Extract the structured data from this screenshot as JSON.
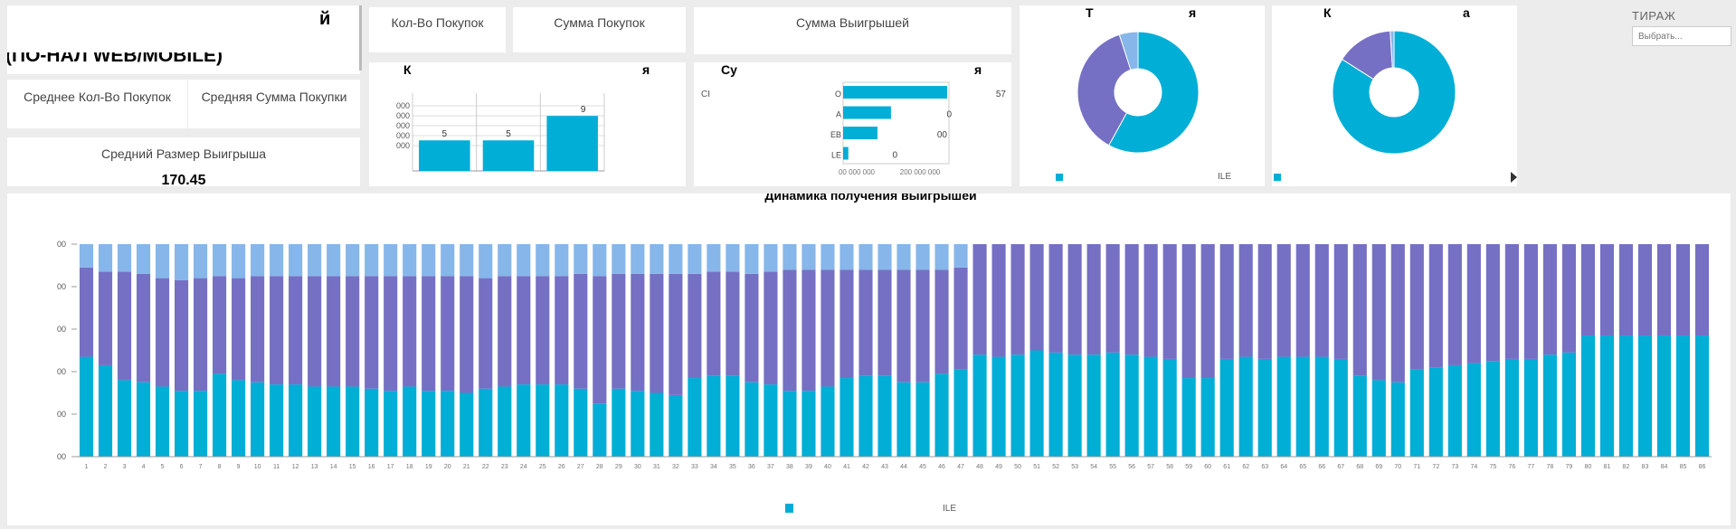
{
  "dashboard": {
    "title_fragment": "й",
    "subtitle_fragment": "(ПО-НАЛ WEB/MOBILE)"
  },
  "kpis": {
    "purchase_count_label": "Кол-Во Покупок",
    "purchase_sum_label": "Сумма Покупок",
    "winnings_sum_label": "Сумма Выигрышей",
    "avg_purchase_count_label": "Среднее Кол-Во Покупок",
    "avg_purchase_sum_label": "Средняя Сумма Покупки",
    "avg_win_size_label": "Средний Размер Выигрыша",
    "avg_win_size_value": "170.45"
  },
  "colors": {
    "web": "#00aed6",
    "mobile": "#7570c4",
    "other": "#86b6ea",
    "grid": "#dddddd"
  },
  "charts": {
    "count_bar": {
      "title_start": "К",
      "title_end": "я",
      "chart_data": {
        "type": "bar",
        "categories": [
          "",
          "",
          ""
        ],
        "values": [
          5,
          5,
          9
        ],
        "data_labels": [
          "5",
          "5",
          "9"
        ],
        "tick_fragments": [
          "000",
          "000",
          "000",
          "000",
          "000"
        ],
        "title": "",
        "xlabel": "",
        "ylabel": ""
      }
    },
    "sum_hbar": {
      "title_start": "Су",
      "title_end": "я",
      "left_label": "СІ",
      "chart_data": {
        "type": "bar",
        "orientation": "horizontal",
        "categories": [
          "O",
          "A",
          "EB",
          "LE"
        ],
        "values": [
          100,
          46,
          33,
          5
        ],
        "value_labels": [
          "57",
          "0",
          "00",
          "0"
        ],
        "x_tick_labels": [
          "00 000 000",
          "200 000 000"
        ],
        "title": "",
        "xlabel": "",
        "ylabel": ""
      }
    },
    "donut_1": {
      "title_start": "Т",
      "title_end": "я",
      "legend_right": "ILE",
      "chart_data": {
        "type": "pie",
        "donut": true,
        "labels": [
          "",
          "",
          ""
        ],
        "values": [
          58,
          37,
          5
        ]
      }
    },
    "donut_2": {
      "title_start": "К",
      "title_end": "а",
      "chart_data": {
        "type": "pie",
        "donut": true,
        "labels": [
          "",
          "",
          ""
        ],
        "values": [
          84,
          15,
          1
        ]
      }
    },
    "stacked": {
      "title": "Динамика получения выигрышей",
      "legend_right": "ILE",
      "chart_data": {
        "type": "bar",
        "stacked": true,
        "percent_scale": true,
        "ylim": [
          0,
          100
        ],
        "y_tick_labels": [
          "00",
          "00",
          "00",
          "00",
          "00",
          "00"
        ],
        "categories": [
          "1",
          "2",
          "3",
          "4",
          "5",
          "6",
          "7",
          "8",
          "9",
          "10",
          "11",
          "12",
          "13",
          "14",
          "15",
          "16",
          "17",
          "18",
          "19",
          "20",
          "21",
          "22",
          "23",
          "24",
          "25",
          "26",
          "27",
          "28",
          "29",
          "30",
          "31",
          "32",
          "33",
          "34",
          "35",
          "36",
          "37",
          "38",
          "39",
          "40",
          "41",
          "42",
          "43",
          "44",
          "45",
          "46",
          "47",
          "48",
          "49",
          "50",
          "51",
          "52",
          "53",
          "54",
          "55",
          "56",
          "57",
          "58",
          "59",
          "60",
          "61",
          "62",
          "63",
          "64",
          "65",
          "66",
          "67",
          "68",
          "69",
          "70",
          "71",
          "72",
          "73",
          "74",
          "75",
          "76",
          "77",
          "78",
          "79",
          "80",
          "81",
          "82",
          "83",
          "84",
          "85",
          "86"
        ],
        "series": [
          {
            "name": "",
            "values": [
              47,
              43,
              36,
              35,
              33,
              31,
              31,
              39,
              36,
              35,
              34,
              34,
              33,
              33,
              33,
              32,
              31,
              33,
              31,
              31,
              30,
              32,
              33,
              34,
              34,
              34,
              32,
              25,
              32,
              31,
              30,
              29,
              37,
              38,
              38,
              35,
              34,
              31,
              31,
              33,
              37,
              38,
              38,
              35,
              35,
              39,
              41,
              48,
              47,
              48,
              50,
              49,
              48,
              48,
              49,
              48,
              47,
              46,
              37,
              37,
              46,
              47,
              46,
              47,
              47,
              47,
              46,
              38,
              36,
              35,
              41,
              42,
              43,
              44,
              45,
              46,
              46,
              48,
              49,
              57,
              57,
              57,
              57,
              57,
              57,
              57
            ]
          },
          {
            "name": "",
            "values": [
              42,
              44,
              51,
              51,
              51,
              52,
              53,
              46,
              48,
              50,
              51,
              51,
              52,
              52,
              52,
              53,
              54,
              52,
              54,
              54,
              55,
              52,
              52,
              51,
              51,
              51,
              54,
              60,
              54,
              55,
              56,
              57,
              49,
              49,
              49,
              51,
              53,
              57,
              57,
              55,
              51,
              50,
              50,
              53,
              53,
              49,
              48,
              52,
              53,
              52,
              50,
              51,
              52,
              52,
              51,
              52,
              53,
              54,
              63,
              63,
              54,
              53,
              54,
              53,
              53,
              53,
              54,
              62,
              64,
              65,
              59,
              58,
              57,
              56,
              55,
              54,
              54,
              52,
              51,
              43,
              43,
              43,
              43,
              43,
              43,
              43
            ]
          },
          {
            "name": "",
            "values": [
              11,
              13,
              13,
              14,
              16,
              17,
              16,
              15,
              16,
              15,
              15,
              15,
              15,
              15,
              15,
              15,
              15,
              15,
              15,
              15,
              15,
              16,
              15,
              15,
              15,
              15,
              14,
              15,
              14,
              14,
              14,
              14,
              14,
              13,
              13,
              14,
              13,
              12,
              12,
              12,
              12,
              12,
              12,
              12,
              12,
              12,
              11,
              0,
              0,
              0,
              0,
              0,
              0,
              0,
              0,
              0,
              0,
              0,
              0,
              0,
              0,
              0,
              0,
              0,
              0,
              0,
              0,
              0,
              0,
              0,
              0,
              0,
              0,
              0,
              0,
              0,
              0,
              0,
              0,
              0,
              0,
              0,
              0,
              0,
              0,
              0
            ]
          }
        ]
      }
    }
  },
  "filter": {
    "title": "ТИРАЖ",
    "placeholder": "Выбрать..."
  }
}
